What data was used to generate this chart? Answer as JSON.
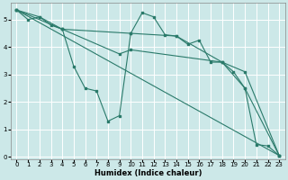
{
  "xlabel": "Humidex (Indice chaleur)",
  "bg_color": "#cce8e8",
  "grid_color": "#ffffff",
  "line_color": "#2a7a6a",
  "xlim": [
    -0.5,
    23.5
  ],
  "ylim": [
    -0.1,
    5.6
  ],
  "yticks": [
    0,
    1,
    2,
    3,
    4,
    5
  ],
  "xticks": [
    0,
    1,
    2,
    3,
    4,
    5,
    6,
    7,
    8,
    9,
    10,
    11,
    12,
    13,
    14,
    15,
    16,
    17,
    18,
    19,
    20,
    21,
    22,
    23
  ],
  "lines": [
    {
      "x": [
        0,
        1,
        2,
        3,
        4,
        5,
        6,
        7,
        8,
        9,
        10,
        11,
        12,
        13,
        14,
        15,
        16,
        17,
        18,
        19,
        20,
        21,
        22,
        23
      ],
      "y": [
        5.35,
        5.0,
        5.1,
        4.8,
        4.65,
        3.3,
        2.5,
        2.4,
        1.3,
        1.5,
        4.5,
        5.25,
        5.1,
        4.45,
        4.4,
        4.1,
        4.25,
        3.45,
        3.45,
        3.1,
        2.5,
        0.45,
        0.4,
        0.05
      ]
    },
    {
      "x": [
        0,
        2,
        4,
        10,
        14,
        18,
        20,
        23
      ],
      "y": [
        5.35,
        5.1,
        4.65,
        4.5,
        4.4,
        3.45,
        2.5,
        0.05
      ]
    },
    {
      "x": [
        0,
        23
      ],
      "y": [
        5.35,
        0.05
      ]
    },
    {
      "x": [
        0,
        4,
        9,
        10,
        18,
        20,
        23
      ],
      "y": [
        5.35,
        4.65,
        3.75,
        3.9,
        3.45,
        3.1,
        0.05
      ]
    }
  ]
}
